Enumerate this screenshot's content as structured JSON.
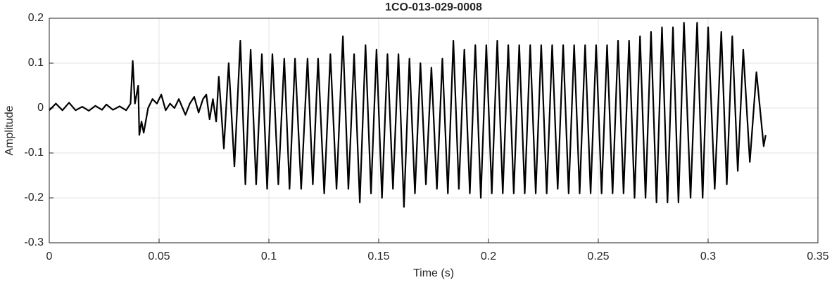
{
  "chart_data": {
    "type": "line",
    "title": "1CO-013-029-0008",
    "xlabel": "Time (s)",
    "ylabel": "Amplitude",
    "xlim": [
      0,
      0.35
    ],
    "xticks": [
      0,
      0.05,
      0.1,
      0.15,
      0.2,
      0.25,
      0.3,
      0.35
    ],
    "ylim": [
      -0.3,
      0.2
    ],
    "yticks": [
      -0.3,
      -0.2,
      -0.1,
      0,
      0.1,
      0.2
    ],
    "grid": true,
    "color": "#000000",
    "x": [
      0,
      0.003,
      0.006,
      0.009,
      0.012,
      0.015,
      0.018,
      0.021,
      0.024,
      0.026,
      0.029,
      0.032,
      0.035,
      0.037,
      0.038,
      0.039,
      0.0405,
      0.041,
      0.042,
      0.043,
      0.045,
      0.047,
      0.049,
      0.051,
      0.053,
      0.055,
      0.057,
      0.059,
      0.062,
      0.064,
      0.066,
      0.068,
      0.07,
      0.0715,
      0.073,
      0.0745,
      0.076,
      0.0772,
      0.0795,
      0.0817,
      0.0843,
      0.087,
      0.0893,
      0.0917,
      0.0942,
      0.0968,
      0.0992,
      0.1016,
      0.1043,
      0.107,
      0.1094,
      0.1119,
      0.1147,
      0.1176,
      0.12,
      0.1224,
      0.1252,
      0.128,
      0.1308,
      0.1337,
      0.1362,
      0.1388,
      0.1414,
      0.144,
      0.1465,
      0.149,
      0.1515,
      0.154,
      0.1565,
      0.159,
      0.1615,
      0.164,
      0.1665,
      0.169,
      0.1715,
      0.174,
      0.1765,
      0.179,
      0.1815,
      0.184,
      0.1865,
      0.189,
      0.1915,
      0.194,
      0.1965,
      0.199,
      0.2015,
      0.204,
      0.2065,
      0.209,
      0.2115,
      0.214,
      0.2165,
      0.219,
      0.2215,
      0.224,
      0.2265,
      0.229,
      0.2315,
      0.234,
      0.2365,
      0.239,
      0.2415,
      0.244,
      0.2465,
      0.249,
      0.2515,
      0.254,
      0.2565,
      0.259,
      0.2615,
      0.264,
      0.2665,
      0.269,
      0.2715,
      0.274,
      0.2765,
      0.279,
      0.2815,
      0.284,
      0.2865,
      0.289,
      0.292,
      0.295,
      0.2975,
      0.3,
      0.303,
      0.306,
      0.3085,
      0.311,
      0.3135,
      0.316,
      0.319,
      0.322,
      0.3253,
      0.3262
    ],
    "values": [
      -0.005,
      0.01,
      -0.005,
      0.012,
      -0.005,
      0.003,
      -0.006,
      0.005,
      -0.004,
      0.008,
      -0.004,
      0.004,
      -0.005,
      0.01,
      0.105,
      0.01,
      0.05,
      -0.06,
      -0.03,
      -0.055,
      0,
      0.02,
      0.01,
      0.03,
      -0.005,
      0.01,
      0,
      0.02,
      -0.015,
      0.01,
      0.025,
      -0.01,
      0.02,
      0.03,
      -0.025,
      0.02,
      -0.03,
      0.07,
      -0.09,
      0.1,
      -0.13,
      0.15,
      -0.17,
      0.13,
      -0.17,
      0.12,
      -0.18,
      0.12,
      -0.17,
      0.11,
      -0.18,
      0.11,
      -0.18,
      0.11,
      -0.17,
      0.11,
      -0.19,
      0.12,
      -0.18,
      0.16,
      -0.18,
      0.12,
      -0.21,
      0.14,
      -0.19,
      0.13,
      -0.2,
      0.12,
      -0.18,
      0.12,
      -0.22,
      0.11,
      -0.19,
      0.1,
      -0.17,
      0.09,
      -0.18,
      0.11,
      -0.19,
      0.15,
      -0.18,
      0.13,
      -0.19,
      0.14,
      -0.2,
      0.14,
      -0.19,
      0.15,
      -0.19,
      0.14,
      -0.19,
      0.14,
      -0.19,
      0.14,
      -0.19,
      0.14,
      -0.19,
      0.14,
      -0.18,
      0.14,
      -0.19,
      0.14,
      -0.19,
      0.14,
      -0.19,
      0.14,
      -0.19,
      0.14,
      -0.19,
      0.15,
      -0.19,
      0.15,
      -0.2,
      0.16,
      -0.2,
      0.17,
      -0.21,
      0.18,
      -0.21,
      0.18,
      -0.21,
      0.19,
      -0.2,
      0.19,
      -0.2,
      0.18,
      -0.18,
      0.17,
      -0.17,
      0.16,
      -0.14,
      0.13,
      -0.12,
      0.08,
      -0.085,
      -0.06
    ]
  }
}
